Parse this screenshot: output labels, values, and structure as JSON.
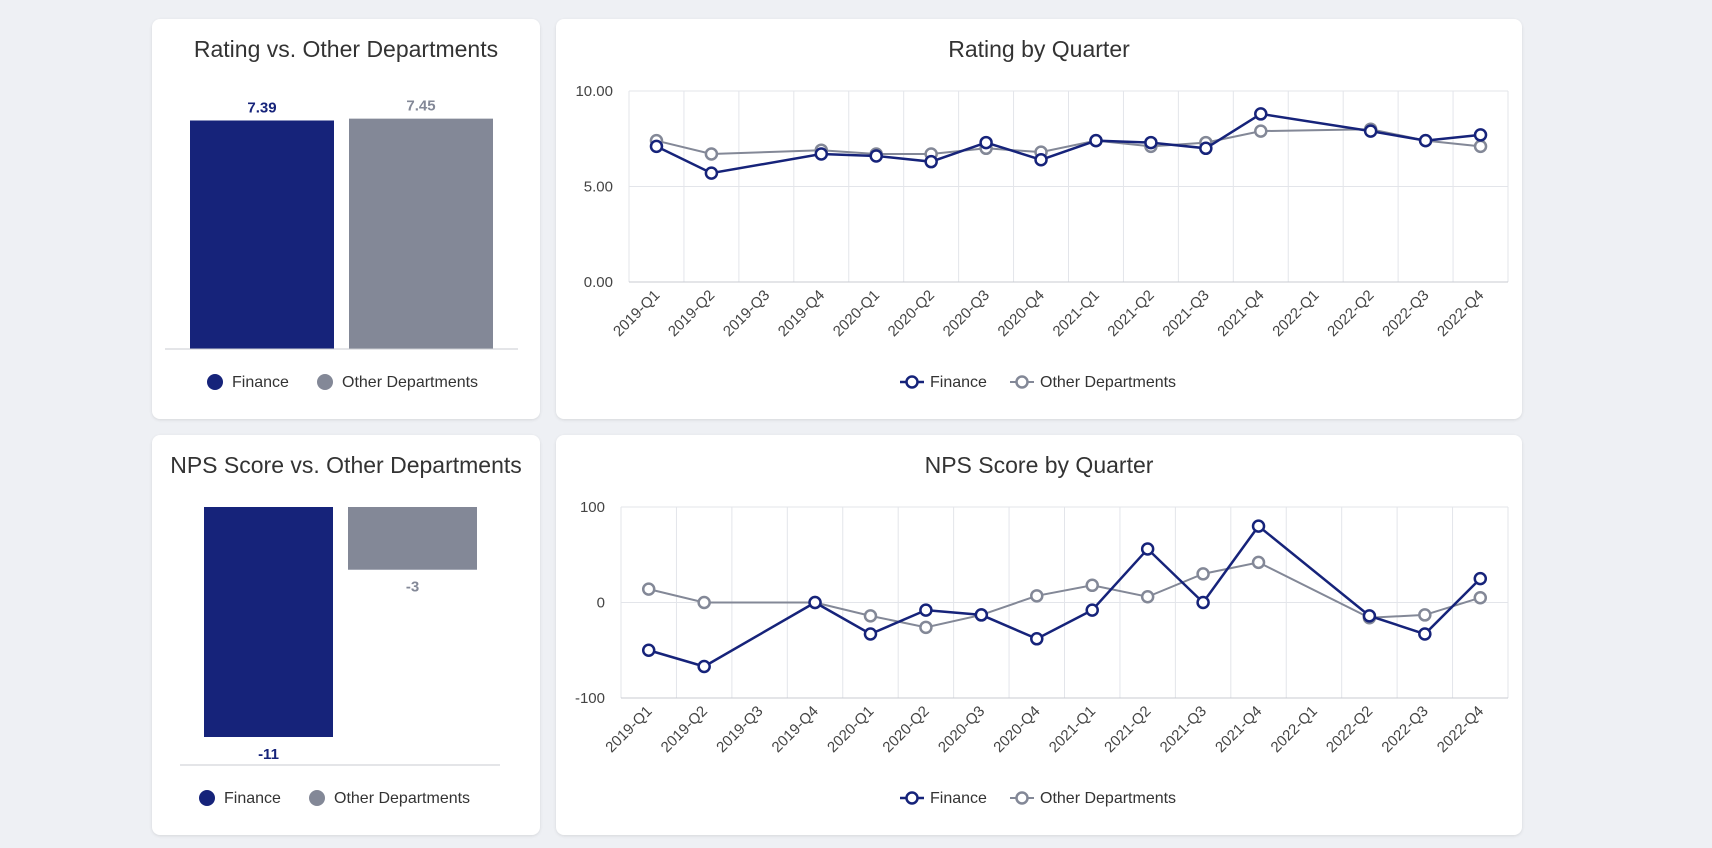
{
  "colors": {
    "finance": "#16237a",
    "other": "#838897",
    "grid": "#e3e5ea",
    "axis": "#c8cbd2"
  },
  "legend": {
    "finance": "Finance",
    "other": "Other Departments"
  },
  "chart_data": [
    {
      "id": "rating_bar",
      "type": "bar",
      "title": "Rating vs. Other Departments",
      "categories": [
        "Finance",
        "Other Departments"
      ],
      "values": [
        7.39,
        7.45
      ],
      "value_labels": [
        "7.39",
        "7.45"
      ],
      "ylim": [
        0,
        7.6
      ]
    },
    {
      "id": "rating_line",
      "type": "line",
      "title": "Rating by Quarter",
      "x": [
        "2019-Q1",
        "2019-Q2",
        "2019-Q3",
        "2019-Q4",
        "2020-Q1",
        "2020-Q2",
        "2020-Q3",
        "2020-Q4",
        "2021-Q1",
        "2021-Q2",
        "2021-Q3",
        "2021-Q4",
        "2022-Q1",
        "2022-Q2",
        "2022-Q3",
        "2022-Q4"
      ],
      "ylim": [
        0,
        10
      ],
      "yticks": [
        0,
        5,
        10
      ],
      "ytick_labels": [
        "0.00",
        "5.00",
        "10.00"
      ],
      "series": [
        {
          "name": "Finance",
          "values": [
            7.1,
            5.7,
            null,
            6.7,
            6.6,
            6.3,
            7.3,
            6.4,
            7.4,
            7.3,
            7.0,
            8.8,
            null,
            7.9,
            7.4,
            7.7
          ]
        },
        {
          "name": "Other Departments",
          "values": [
            7.4,
            6.7,
            null,
            6.9,
            6.7,
            6.7,
            7.0,
            6.8,
            7.4,
            7.1,
            7.3,
            7.9,
            null,
            8.0,
            7.4,
            7.1
          ]
        }
      ]
    },
    {
      "id": "nps_bar",
      "type": "bar",
      "title": "NPS Score vs. Other Departments",
      "categories": [
        "Finance",
        "Other Departments"
      ],
      "values": [
        -11,
        -3
      ],
      "value_labels": [
        "-11",
        "-3"
      ],
      "ylim": [
        -11,
        0
      ]
    },
    {
      "id": "nps_line",
      "type": "line",
      "title": "NPS Score by Quarter",
      "x": [
        "2019-Q1",
        "2019-Q2",
        "2019-Q3",
        "2019-Q4",
        "2020-Q1",
        "2020-Q2",
        "2020-Q3",
        "2020-Q4",
        "2021-Q1",
        "2021-Q2",
        "2021-Q3",
        "2021-Q4",
        "2022-Q1",
        "2022-Q2",
        "2022-Q3",
        "2022-Q4"
      ],
      "ylim": [
        -100,
        100
      ],
      "yticks": [
        -100,
        0,
        100
      ],
      "ytick_labels": [
        "-100",
        "0",
        "100"
      ],
      "series": [
        {
          "name": "Finance",
          "values": [
            -50,
            -67,
            null,
            0,
            -33,
            -8,
            -13,
            -38,
            -8,
            56,
            0,
            80,
            null,
            -14,
            -33,
            25
          ]
        },
        {
          "name": "Other Departments",
          "values": [
            14,
            0,
            null,
            0,
            -14,
            -26,
            -13,
            7,
            18,
            6,
            30,
            42,
            null,
            -16,
            -13,
            5
          ]
        }
      ]
    }
  ]
}
